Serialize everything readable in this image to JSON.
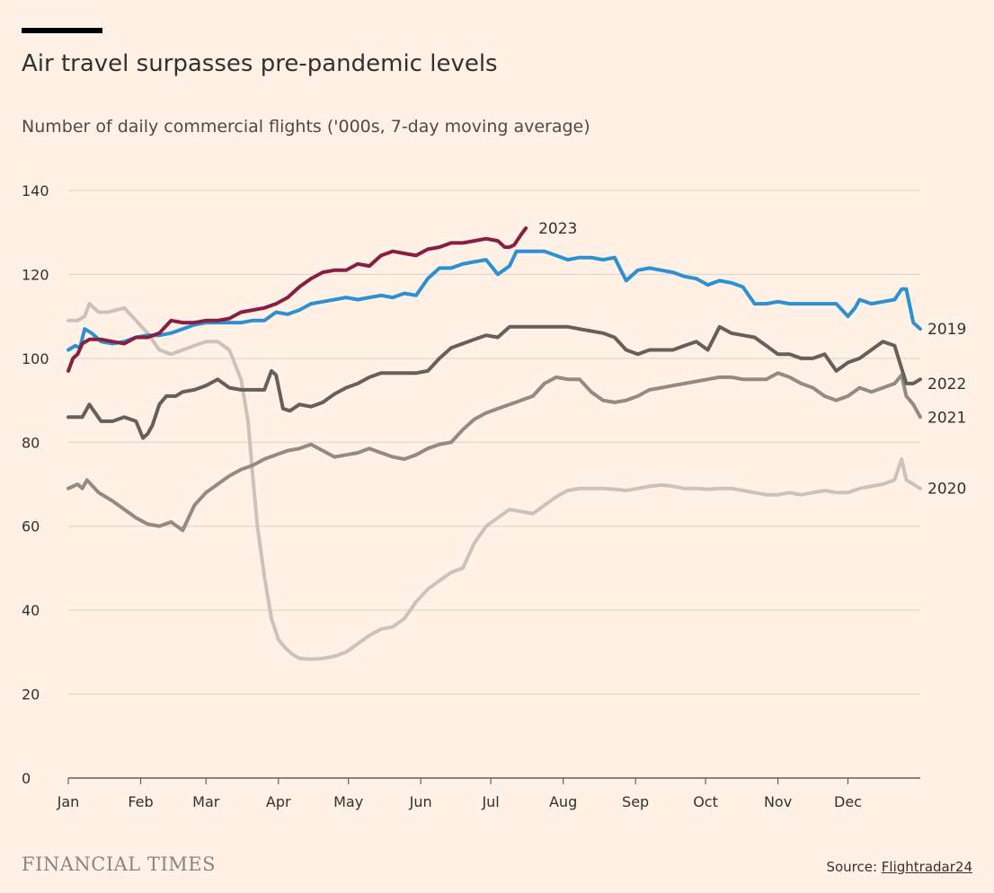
{
  "header": {
    "title": "Air travel surpasses pre-pandemic levels",
    "subtitle": "Number of daily commercial flights ('000s, 7-day moving average)"
  },
  "footer": {
    "publisher": "FINANCIAL TIMES",
    "source_prefix": "Source: ",
    "source_name": "Flightradar24"
  },
  "colors": {
    "background": "#fff1e5",
    "grid": "#e2d7cc",
    "axis": "#66605c",
    "text": "#33302e"
  },
  "chart_data": {
    "type": "line",
    "ylim": [
      0,
      140
    ],
    "yticks": [
      0,
      20,
      40,
      60,
      80,
      100,
      120,
      140
    ],
    "xlim": [
      1,
      366
    ],
    "months": [
      {
        "label": "Jan",
        "day": 1
      },
      {
        "label": "Feb",
        "day": 32
      },
      {
        "label": "Mar",
        "day": 60
      },
      {
        "label": "Apr",
        "day": 91
      },
      {
        "label": "May",
        "day": 121
      },
      {
        "label": "Jun",
        "day": 152
      },
      {
        "label": "Jul",
        "day": 182
      },
      {
        "label": "Aug",
        "day": 213
      },
      {
        "label": "Sep",
        "day": 244
      },
      {
        "label": "Oct",
        "day": 274
      },
      {
        "label": "Nov",
        "day": 305
      },
      {
        "label": "Dec",
        "day": 335
      }
    ],
    "grid": true,
    "series": [
      {
        "name": "2020",
        "color": "#cbc3bb",
        "label_y": 69,
        "x": [
          1,
          5,
          8,
          10,
          14,
          18,
          25,
          30,
          35,
          40,
          45,
          50,
          55,
          60,
          65,
          70,
          75,
          78,
          80,
          82,
          85,
          88,
          91,
          94,
          97,
          100,
          105,
          110,
          115,
          120,
          125,
          130,
          135,
          140,
          145,
          150,
          155,
          160,
          165,
          170,
          175,
          180,
          185,
          190,
          195,
          200,
          205,
          210,
          215,
          220,
          225,
          230,
          235,
          240,
          245,
          250,
          255,
          260,
          265,
          270,
          275,
          280,
          285,
          290,
          295,
          300,
          305,
          310,
          315,
          320,
          325,
          330,
          335,
          340,
          345,
          350,
          355,
          358,
          360,
          363,
          366
        ],
        "y": [
          109,
          109,
          110,
          113,
          111,
          111,
          112,
          109,
          106,
          102,
          101,
          102,
          103,
          104,
          104,
          102,
          95,
          85,
          72,
          60,
          48,
          38,
          33,
          31,
          29.5,
          28.5,
          28.3,
          28.5,
          29,
          30,
          32,
          34,
          35.5,
          36,
          38,
          42,
          45,
          47,
          49,
          50,
          56,
          60,
          62,
          64,
          63.5,
          63,
          65,
          67,
          68.5,
          69,
          69,
          69,
          68.8,
          68.5,
          69,
          69.5,
          69.8,
          69.5,
          69,
          69,
          68.8,
          69,
          69,
          68.5,
          68,
          67.5,
          67.5,
          68,
          67.5,
          68,
          68.5,
          68,
          68,
          69,
          69.5,
          70,
          71,
          76,
          71,
          70,
          69
        ]
      },
      {
        "name": "2021",
        "color": "#938a82",
        "label_y": 86,
        "x": [
          1,
          5,
          7,
          9,
          14,
          20,
          25,
          30,
          35,
          40,
          45,
          50,
          55,
          60,
          65,
          70,
          75,
          80,
          85,
          90,
          95,
          100,
          105,
          110,
          115,
          120,
          125,
          130,
          135,
          140,
          145,
          150,
          155,
          160,
          165,
          170,
          175,
          180,
          185,
          190,
          195,
          200,
          205,
          210,
          215,
          220,
          225,
          230,
          235,
          240,
          245,
          250,
          255,
          260,
          265,
          270,
          275,
          280,
          285,
          290,
          295,
          300,
          305,
          310,
          315,
          320,
          325,
          330,
          335,
          340,
          345,
          350,
          355,
          358,
          360,
          363,
          366
        ],
        "y": [
          69,
          70,
          69,
          71,
          68,
          66,
          64,
          62,
          60.5,
          60,
          61,
          59,
          65,
          68,
          70,
          72,
          73.5,
          74.5,
          76,
          77,
          78,
          78.5,
          79.5,
          78,
          76.5,
          77,
          77.5,
          78.5,
          77.5,
          76.5,
          76,
          77,
          78.5,
          79.5,
          80,
          83,
          85.5,
          87,
          88,
          89,
          90,
          91,
          94,
          95.5,
          95,
          95,
          92,
          90,
          89.5,
          90,
          91,
          92.5,
          93,
          93.5,
          94,
          94.5,
          95,
          95.5,
          95.5,
          95,
          95,
          95,
          96.5,
          95.5,
          94,
          93,
          91,
          90,
          91,
          93,
          92,
          93,
          94,
          96,
          91,
          89,
          86
        ]
      },
      {
        "name": "2022",
        "color": "#66605c",
        "label_y": 94,
        "x": [
          1,
          5,
          7,
          10,
          15,
          20,
          25,
          30,
          33,
          35,
          37,
          40,
          43,
          47,
          50,
          55,
          60,
          65,
          70,
          75,
          80,
          85,
          88,
          90,
          93,
          96,
          100,
          105,
          110,
          115,
          120,
          125,
          130,
          135,
          140,
          145,
          150,
          155,
          160,
          165,
          170,
          175,
          180,
          185,
          190,
          195,
          200,
          205,
          210,
          215,
          220,
          225,
          230,
          235,
          240,
          245,
          250,
          255,
          260,
          265,
          270,
          275,
          280,
          285,
          290,
          295,
          300,
          305,
          310,
          315,
          320,
          325,
          330,
          335,
          340,
          345,
          350,
          355,
          360,
          363,
          366
        ],
        "y": [
          86,
          86,
          86,
          89,
          85,
          85,
          86,
          85,
          81,
          82,
          84,
          89,
          91,
          91,
          92,
          92.5,
          93.5,
          95,
          93,
          92.5,
          92.5,
          92.5,
          97,
          96,
          88,
          87.5,
          89,
          88.5,
          89.5,
          91.5,
          93,
          94,
          95.5,
          96.5,
          96.5,
          96.5,
          96.5,
          97,
          100,
          102.5,
          103.5,
          104.5,
          105.5,
          105,
          107.5,
          107.5,
          107.5,
          107.5,
          107.5,
          107.5,
          107,
          106.5,
          106,
          105,
          102,
          101,
          102,
          102,
          102,
          103,
          104,
          102,
          107.5,
          106,
          105.5,
          105,
          103,
          101,
          101,
          100,
          100,
          101,
          97,
          99,
          100,
          102,
          104,
          103,
          94,
          94,
          95
        ]
      },
      {
        "name": "2019",
        "color": "#2e90d1",
        "label_y": 107,
        "x": [
          1,
          4,
          6,
          8,
          11,
          15,
          20,
          25,
          30,
          35,
          40,
          45,
          50,
          55,
          60,
          65,
          70,
          75,
          80,
          85,
          90,
          95,
          100,
          105,
          110,
          115,
          120,
          125,
          130,
          135,
          140,
          145,
          150,
          155,
          160,
          165,
          170,
          175,
          180,
          185,
          190,
          193,
          195,
          200,
          205,
          210,
          215,
          220,
          225,
          230,
          235,
          240,
          245,
          250,
          255,
          260,
          265,
          270,
          275,
          280,
          285,
          290,
          295,
          300,
          305,
          310,
          315,
          320,
          325,
          330,
          335,
          338,
          340,
          345,
          350,
          355,
          358,
          360,
          363,
          366
        ],
        "y": [
          102,
          103,
          102.5,
          107,
          106,
          104,
          103.5,
          104,
          105,
          105.5,
          105.5,
          106,
          107,
          108,
          108.5,
          108.5,
          108.5,
          108.5,
          109,
          109,
          111,
          110.5,
          111.5,
          113,
          113.5,
          114,
          114.5,
          114,
          114.5,
          115,
          114.5,
          115.5,
          115,
          119,
          121.5,
          121.5,
          122.5,
          123,
          123.5,
          120,
          122,
          125.5,
          125.5,
          125.5,
          125.5,
          124.5,
          123.5,
          124,
          124,
          123.5,
          124,
          118.5,
          121,
          121.5,
          121,
          120.5,
          119.5,
          119,
          117.5,
          118.5,
          118,
          117,
          113,
          113,
          113.5,
          113,
          113,
          113,
          113,
          113,
          110,
          112,
          114,
          113,
          113.5,
          114,
          116.5,
          116.5,
          108.5,
          107
        ]
      },
      {
        "name": "2023",
        "color": "#861f41",
        "label_y": 131,
        "x": [
          1,
          3,
          5,
          7,
          10,
          15,
          20,
          25,
          30,
          35,
          40,
          45,
          50,
          55,
          60,
          65,
          70,
          75,
          80,
          85,
          90,
          95,
          100,
          105,
          110,
          115,
          120,
          125,
          130,
          135,
          140,
          145,
          150,
          155,
          160,
          165,
          170,
          175,
          180,
          185,
          188,
          190,
          192,
          195,
          197
        ],
        "y": [
          97,
          100,
          101,
          103.5,
          104.5,
          104.5,
          104,
          103.5,
          105,
          105,
          106,
          109,
          108.5,
          108.5,
          109,
          109,
          109.5,
          111,
          111.5,
          112,
          113,
          114.5,
          117,
          119,
          120.5,
          121,
          121,
          122.5,
          122,
          124.5,
          125.5,
          125,
          124.5,
          126,
          126.5,
          127.5,
          127.5,
          128,
          128.5,
          128,
          126.5,
          126.5,
          127,
          129.5,
          131
        ]
      }
    ]
  }
}
